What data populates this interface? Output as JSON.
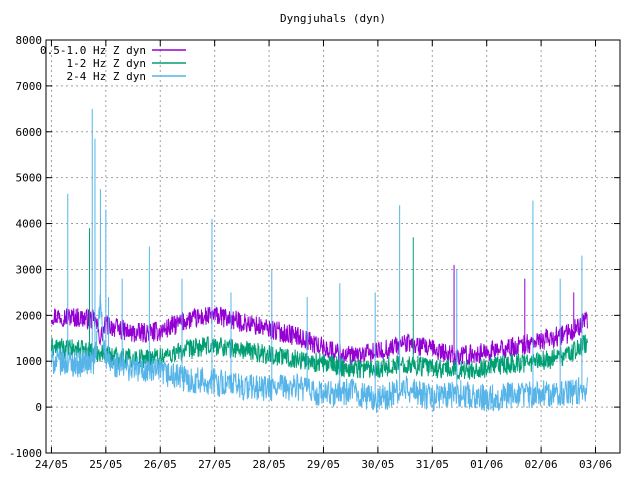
{
  "chart_data": {
    "type": "line",
    "title": "Dyngjuhals (dyn)",
    "xlabel": "",
    "ylabel": "",
    "x_ticks": [
      "24/05",
      "25/05",
      "26/05",
      "27/05",
      "28/05",
      "29/05",
      "30/05",
      "31/05",
      "01/06",
      "02/06",
      "03/06"
    ],
    "xlim": [
      -0.1,
      10.45
    ],
    "ylim": [
      -1000,
      8000
    ],
    "y_ticks": [
      -1000,
      0,
      1000,
      2000,
      3000,
      4000,
      5000,
      6000,
      7000,
      8000
    ],
    "grid": true,
    "legend_position": "top-left",
    "series": [
      {
        "name": "0.5-1.0 Hz Z dyn",
        "color": "#9400d3",
        "x": [
          0.0,
          0.5,
          0.8,
          0.9,
          1.0,
          1.5,
          2.0,
          2.5,
          3.0,
          3.5,
          4.0,
          4.5,
          5.0,
          5.5,
          6.0,
          6.5,
          7.0,
          7.5,
          8.0,
          8.5,
          9.0,
          9.5,
          9.85
        ],
        "y": [
          2000,
          1950,
          1900,
          1500,
          1800,
          1600,
          1650,
          1900,
          2000,
          1850,
          1700,
          1550,
          1300,
          1100,
          1200,
          1400,
          1250,
          1100,
          1200,
          1300,
          1450,
          1600,
          1900
        ],
        "spikes": [
          [
            8.7,
            2800
          ],
          [
            9.6,
            2500
          ],
          [
            7.4,
            3100
          ]
        ]
      },
      {
        "name": "1-2 Hz Z dyn",
        "color": "#009e73",
        "x": [
          0.0,
          0.5,
          0.8,
          0.9,
          1.0,
          1.5,
          2.0,
          2.5,
          3.0,
          3.5,
          4.0,
          4.5,
          5.0,
          5.5,
          6.0,
          6.5,
          7.0,
          7.5,
          8.0,
          8.5,
          9.0,
          9.5,
          9.85
        ],
        "y": [
          1300,
          1250,
          1200,
          1200,
          1150,
          1050,
          1100,
          1250,
          1350,
          1250,
          1150,
          1050,
          950,
          850,
          850,
          950,
          850,
          800,
          850,
          950,
          1000,
          1150,
          1400
        ],
        "spikes": [
          [
            6.65,
            3700
          ],
          [
            0.7,
            3900
          ]
        ]
      },
      {
        "name": "2-4 Hz Z dyn",
        "color": "#56b4e9",
        "x": [
          0.0,
          0.5,
          0.8,
          0.9,
          1.0,
          1.5,
          2.0,
          2.5,
          3.0,
          3.5,
          4.0,
          4.5,
          5.0,
          5.5,
          6.0,
          6.5,
          7.0,
          7.5,
          8.0,
          8.5,
          9.0,
          9.5,
          9.85
        ],
        "y": [
          1000,
          950,
          1000,
          2300,
          950,
          850,
          750,
          600,
          550,
          450,
          400,
          450,
          250,
          350,
          150,
          400,
          200,
          300,
          200,
          250,
          300,
          300,
          400
        ],
        "spikes": [
          [
            0.3,
            4650
          ],
          [
            0.75,
            6500
          ],
          [
            0.8,
            5850
          ],
          [
            0.9,
            4750
          ],
          [
            1.0,
            4300
          ],
          [
            1.05,
            2400
          ],
          [
            1.3,
            2800
          ],
          [
            1.8,
            3500
          ],
          [
            2.4,
            2800
          ],
          [
            2.95,
            4100
          ],
          [
            3.3,
            2500
          ],
          [
            4.7,
            2400
          ],
          [
            5.3,
            2700
          ],
          [
            6.4,
            4400
          ],
          [
            7.45,
            3000
          ],
          [
            8.85,
            4500
          ],
          [
            9.35,
            2800
          ],
          [
            9.75,
            3300
          ],
          [
            4.05,
            3000
          ],
          [
            5.95,
            2500
          ]
        ]
      }
    ]
  }
}
